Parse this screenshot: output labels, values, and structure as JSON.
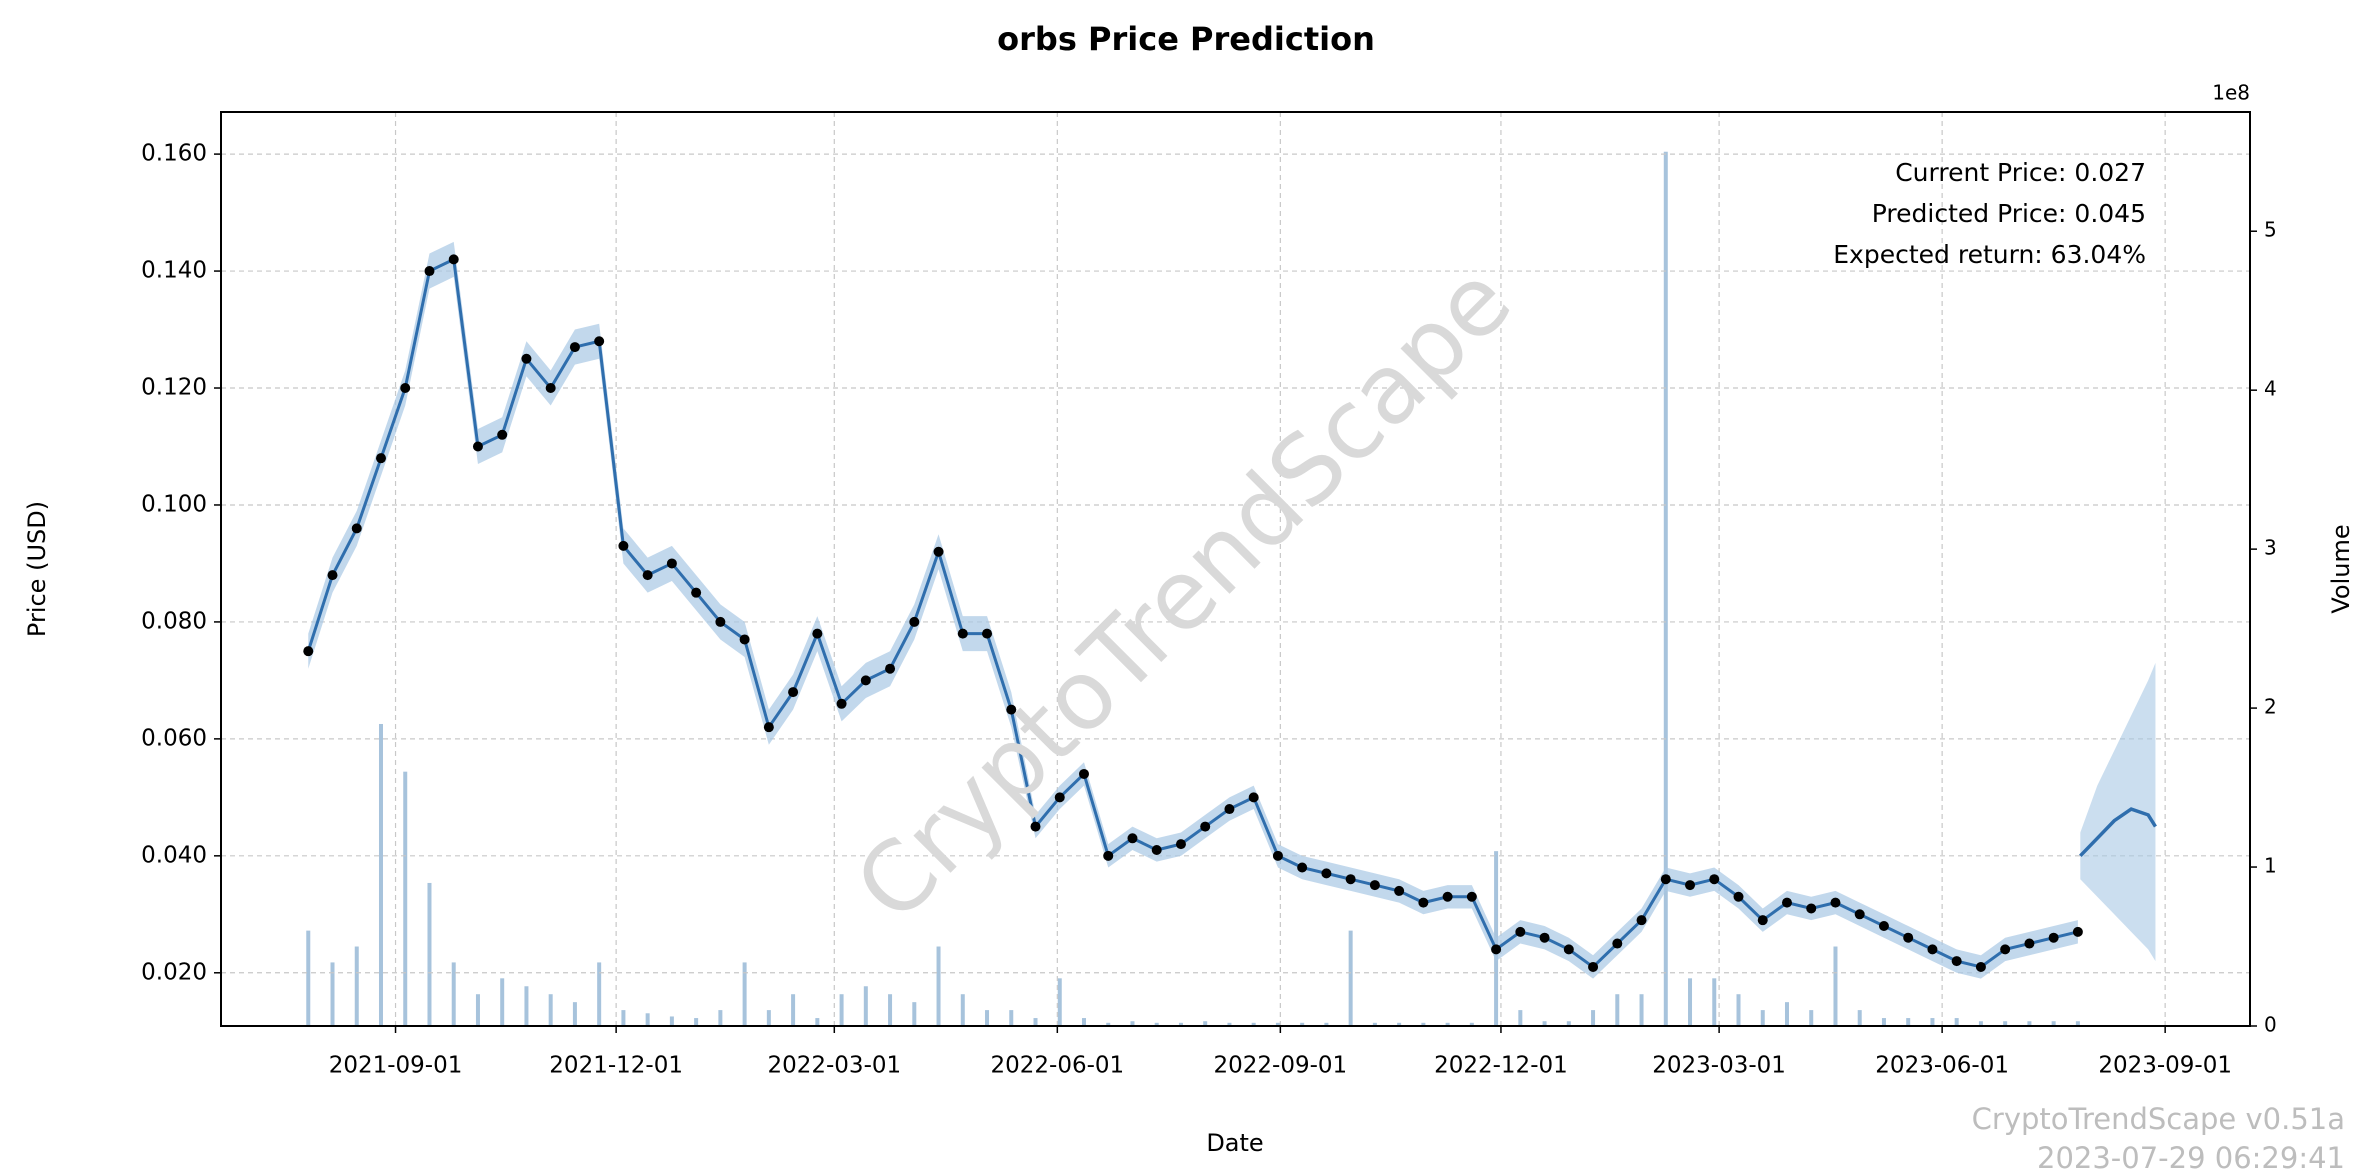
{
  "chart_data": {
    "type": "line",
    "title": "orbs Price Prediction",
    "xlabel": "Date",
    "ylabel": "Price (USD)",
    "y2label": "Volume",
    "y2_offset": "1e8",
    "annotations": [
      "Current Price: 0.027",
      "Predicted Price: 0.045",
      "Expected return: 63.04%"
    ],
    "watermark": "CryptoTrendScape",
    "footer": [
      "CryptoTrendScape v0.51a",
      "2023-07-29 06:29:41"
    ],
    "x": [
      "2021-07-27",
      "2021-08-06",
      "2021-08-16",
      "2021-08-26",
      "2021-09-05",
      "2021-09-15",
      "2021-09-25",
      "2021-10-05",
      "2021-10-15",
      "2021-10-25",
      "2021-11-04",
      "2021-11-14",
      "2021-11-24",
      "2021-12-04",
      "2021-12-14",
      "2021-12-24",
      "2022-01-03",
      "2022-01-13",
      "2022-01-23",
      "2022-02-02",
      "2022-02-12",
      "2022-02-22",
      "2022-03-04",
      "2022-03-14",
      "2022-03-24",
      "2022-04-03",
      "2022-04-13",
      "2022-04-23",
      "2022-05-03",
      "2022-05-13",
      "2022-05-23",
      "2022-06-02",
      "2022-06-12",
      "2022-06-22",
      "2022-07-02",
      "2022-07-12",
      "2022-07-22",
      "2022-08-01",
      "2022-08-11",
      "2022-08-21",
      "2022-08-31",
      "2022-09-10",
      "2022-09-20",
      "2022-09-30",
      "2022-10-10",
      "2022-10-20",
      "2022-10-30",
      "2022-11-09",
      "2022-11-19",
      "2022-11-29",
      "2022-12-09",
      "2022-12-19",
      "2022-12-29",
      "2023-01-08",
      "2023-01-18",
      "2023-01-28",
      "2023-02-07",
      "2023-02-17",
      "2023-02-27",
      "2023-03-09",
      "2023-03-19",
      "2023-03-29",
      "2023-04-08",
      "2023-04-18",
      "2023-04-28",
      "2023-05-08",
      "2023-05-18",
      "2023-05-28",
      "2023-06-07",
      "2023-06-17",
      "2023-06-27",
      "2023-07-07",
      "2023-07-17",
      "2023-07-27"
    ],
    "actual": [
      0.075,
      0.088,
      0.096,
      0.108,
      0.12,
      0.14,
      0.142,
      0.11,
      0.112,
      0.125,
      0.12,
      0.127,
      0.128,
      0.093,
      0.088,
      0.09,
      0.085,
      0.08,
      0.077,
      0.062,
      0.068,
      0.078,
      0.066,
      0.07,
      0.072,
      0.08,
      0.092,
      0.078,
      0.078,
      0.065,
      0.045,
      0.05,
      0.054,
      0.04,
      0.043,
      0.041,
      0.042,
      0.045,
      0.048,
      0.05,
      0.04,
      0.038,
      0.037,
      0.036,
      0.035,
      0.034,
      0.032,
      0.033,
      0.033,
      0.024,
      0.027,
      0.026,
      0.024,
      0.021,
      0.025,
      0.029,
      0.036,
      0.035,
      0.036,
      0.033,
      0.029,
      0.032,
      0.031,
      0.032,
      0.03,
      0.028,
      0.026,
      0.024,
      0.022,
      0.021,
      0.024,
      0.025,
      0.026,
      0.027
    ],
    "lower": [
      0.072,
      0.085,
      0.093,
      0.105,
      0.117,
      0.137,
      0.139,
      0.107,
      0.109,
      0.122,
      0.117,
      0.124,
      0.125,
      0.09,
      0.085,
      0.087,
      0.082,
      0.077,
      0.074,
      0.059,
      0.065,
      0.075,
      0.063,
      0.067,
      0.069,
      0.077,
      0.089,
      0.075,
      0.075,
      0.062,
      0.043,
      0.048,
      0.052,
      0.038,
      0.041,
      0.039,
      0.04,
      0.043,
      0.046,
      0.048,
      0.038,
      0.036,
      0.035,
      0.034,
      0.033,
      0.032,
      0.03,
      0.031,
      0.031,
      0.022,
      0.025,
      0.024,
      0.022,
      0.019,
      0.023,
      0.027,
      0.034,
      0.033,
      0.034,
      0.031,
      0.027,
      0.03,
      0.029,
      0.03,
      0.028,
      0.026,
      0.024,
      0.022,
      0.02,
      0.019,
      0.022,
      0.023,
      0.024,
      0.025
    ],
    "upper": [
      0.078,
      0.091,
      0.099,
      0.111,
      0.123,
      0.143,
      0.145,
      0.113,
      0.115,
      0.128,
      0.123,
      0.13,
      0.131,
      0.096,
      0.091,
      0.093,
      0.088,
      0.083,
      0.08,
      0.065,
      0.071,
      0.081,
      0.069,
      0.073,
      0.075,
      0.083,
      0.095,
      0.081,
      0.081,
      0.068,
      0.047,
      0.052,
      0.056,
      0.042,
      0.045,
      0.043,
      0.044,
      0.047,
      0.05,
      0.052,
      0.042,
      0.04,
      0.039,
      0.038,
      0.037,
      0.036,
      0.034,
      0.035,
      0.035,
      0.026,
      0.029,
      0.028,
      0.026,
      0.023,
      0.027,
      0.031,
      0.038,
      0.037,
      0.038,
      0.035,
      0.031,
      0.034,
      0.033,
      0.034,
      0.032,
      0.03,
      0.028,
      0.026,
      0.024,
      0.023,
      0.026,
      0.027,
      0.028,
      0.029
    ],
    "volume": [
      0.6,
      0.4,
      0.5,
      1.9,
      1.6,
      0.9,
      0.4,
      0.2,
      0.3,
      0.25,
      0.2,
      0.15,
      0.4,
      0.1,
      0.08,
      0.06,
      0.05,
      0.1,
      0.4,
      0.1,
      0.2,
      0.05,
      0.2,
      0.25,
      0.2,
      0.15,
      0.5,
      0.2,
      0.1,
      0.1,
      0.05,
      0.3,
      0.05,
      0.02,
      0.03,
      0.02,
      0.02,
      0.03,
      0.02,
      0.02,
      0.02,
      0.02,
      0.02,
      0.6,
      0.02,
      0.02,
      0.02,
      0.02,
      0.02,
      1.1,
      0.1,
      0.03,
      0.03,
      0.1,
      0.2,
      0.2,
      5.5,
      0.3,
      0.3,
      0.2,
      0.1,
      0.15,
      0.1,
      0.5,
      0.1,
      0.05,
      0.05,
      0.05,
      0.05,
      0.03,
      0.03,
      0.03,
      0.03,
      0.03
    ],
    "forecast": {
      "x": [
        "2023-07-28",
        "2023-08-04",
        "2023-08-11",
        "2023-08-18",
        "2023-08-25",
        "2023-08-28"
      ],
      "values": [
        0.04,
        0.043,
        0.046,
        0.048,
        0.047,
        0.045
      ],
      "lower": [
        0.036,
        0.033,
        0.03,
        0.027,
        0.024,
        0.022
      ],
      "upper": [
        0.044,
        0.052,
        0.058,
        0.064,
        0.07,
        0.073
      ]
    },
    "line_color": "#2f6ead",
    "band_color": "#a8c8e4",
    "point_color": "#000000",
    "volume_color": "#a7c3dc",
    "xlim": [
      "2021-06-21",
      "2023-10-06"
    ],
    "xticks": [
      "2021-09-01",
      "2021-12-01",
      "2022-03-01",
      "2022-06-01",
      "2022-09-01",
      "2022-12-01",
      "2023-03-01",
      "2023-06-01",
      "2023-09-01"
    ],
    "ylim": [
      0.0109,
      0.1672
    ],
    "yticks": [
      {
        "value": 0.02,
        "label": "0.020"
      },
      {
        "value": 0.04,
        "label": "0.040"
      },
      {
        "value": 0.06,
        "label": "0.060"
      },
      {
        "value": 0.08,
        "label": "0.080"
      },
      {
        "value": 0.1,
        "label": "0.100"
      },
      {
        "value": 0.12,
        "label": "0.120"
      },
      {
        "value": 0.14,
        "label": "0.140"
      },
      {
        "value": 0.16,
        "label": "0.160"
      }
    ],
    "y2lim": [
      0,
      5.75
    ],
    "y2ticks": [
      0,
      1,
      2,
      3,
      4,
      5
    ],
    "grid": true
  }
}
